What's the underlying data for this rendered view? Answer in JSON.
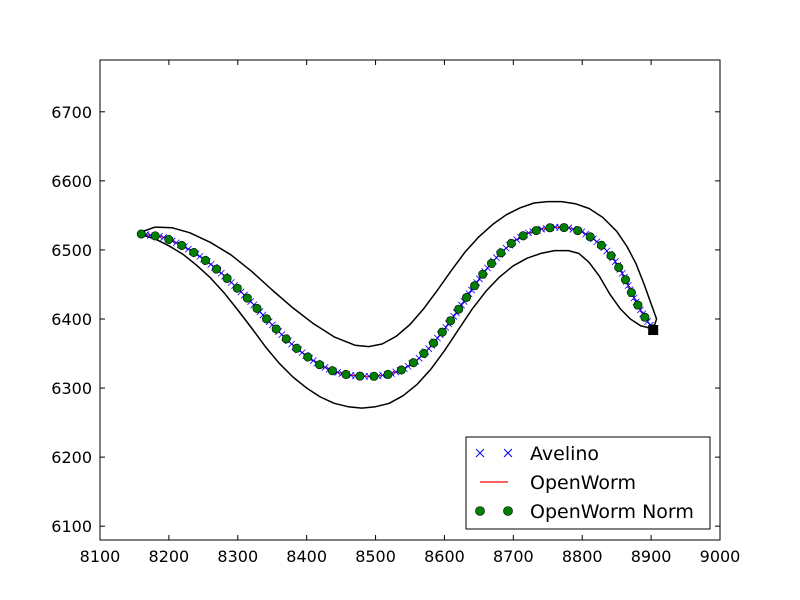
{
  "chart_data": {
    "type": "scatter",
    "xlim": [
      8100,
      9000
    ],
    "ylim": [
      6080,
      6775
    ],
    "x_ticks": [
      8100,
      8200,
      8300,
      8400,
      8500,
      8600,
      8700,
      8800,
      8900,
      9000
    ],
    "y_ticks": [
      6100,
      6200,
      6300,
      6400,
      6500,
      6600,
      6700
    ],
    "grid": false,
    "legend_position": "lower-right",
    "colors": {
      "avelino": "#0000ff",
      "openworm": "#ff0000",
      "openworm_norm": "#008000",
      "contour": "#000000"
    },
    "legend": [
      {
        "key": "avelino",
        "label": "Avelino",
        "marker": "x"
      },
      {
        "key": "openworm",
        "label": "OpenWorm",
        "marker": "line"
      },
      {
        "key": "openworm_norm",
        "label": "OpenWorm Norm",
        "marker": "circle"
      }
    ],
    "centerline": [
      [
        8160,
        6523
      ],
      [
        8175,
        6521
      ],
      [
        8190,
        6519
      ],
      [
        8205,
        6513
      ],
      [
        8222,
        6505
      ],
      [
        8240,
        6494
      ],
      [
        8260,
        6480
      ],
      [
        8280,
        6463
      ],
      [
        8300,
        6444
      ],
      [
        8320,
        6424
      ],
      [
        8340,
        6402
      ],
      [
        8360,
        6381
      ],
      [
        8380,
        6362
      ],
      [
        8400,
        6346
      ],
      [
        8420,
        6333
      ],
      [
        8440,
        6324
      ],
      [
        8460,
        6319
      ],
      [
        8480,
        6317
      ],
      [
        8500,
        6317
      ],
      [
        8520,
        6320
      ],
      [
        8540,
        6327
      ],
      [
        8560,
        6340
      ],
      [
        8580,
        6360
      ],
      [
        8600,
        6385
      ],
      [
        8620,
        6413
      ],
      [
        8640,
        6443
      ],
      [
        8660,
        6471
      ],
      [
        8680,
        6494
      ],
      [
        8700,
        6512
      ],
      [
        8720,
        6524
      ],
      [
        8740,
        6530
      ],
      [
        8760,
        6533
      ],
      [
        8780,
        6532
      ],
      [
        8800,
        6526
      ],
      [
        8815,
        6517
      ],
      [
        8830,
        6505
      ],
      [
        8845,
        6488
      ],
      [
        8860,
        6463
      ],
      [
        8872,
        6437
      ],
      [
        8885,
        6412
      ],
      [
        8895,
        6396
      ],
      [
        8903,
        6386
      ]
    ],
    "contour_upper": [
      [
        8160,
        6526
      ],
      [
        8180,
        6533
      ],
      [
        8205,
        6532
      ],
      [
        8230,
        6525
      ],
      [
        8260,
        6511
      ],
      [
        8290,
        6493
      ],
      [
        8320,
        6469
      ],
      [
        8350,
        6442
      ],
      [
        8380,
        6416
      ],
      [
        8410,
        6393
      ],
      [
        8440,
        6374
      ],
      [
        8470,
        6362
      ],
      [
        8490,
        6360
      ],
      [
        8510,
        6364
      ],
      [
        8530,
        6375
      ],
      [
        8550,
        6392
      ],
      [
        8570,
        6415
      ],
      [
        8590,
        6442
      ],
      [
        8610,
        6470
      ],
      [
        8630,
        6497
      ],
      [
        8650,
        6519
      ],
      [
        8670,
        6537
      ],
      [
        8690,
        6551
      ],
      [
        8710,
        6561
      ],
      [
        8730,
        6568
      ],
      [
        8750,
        6570
      ],
      [
        8770,
        6570
      ],
      [
        8790,
        6567
      ],
      [
        8810,
        6560
      ],
      [
        8830,
        6547
      ],
      [
        8850,
        6527
      ],
      [
        8865,
        6505
      ],
      [
        8878,
        6480
      ],
      [
        8890,
        6450
      ],
      [
        8900,
        6422
      ],
      [
        8908,
        6400
      ],
      [
        8903,
        6386
      ]
    ],
    "contour_lower": [
      [
        8903,
        6386
      ],
      [
        8885,
        6390
      ],
      [
        8870,
        6400
      ],
      [
        8855,
        6415
      ],
      [
        8840,
        6436
      ],
      [
        8825,
        6462
      ],
      [
        8810,
        6482
      ],
      [
        8795,
        6495
      ],
      [
        8780,
        6499
      ],
      [
        8760,
        6499
      ],
      [
        8740,
        6495
      ],
      [
        8720,
        6488
      ],
      [
        8700,
        6477
      ],
      [
        8680,
        6461
      ],
      [
        8660,
        6440
      ],
      [
        8640,
        6414
      ],
      [
        8620,
        6384
      ],
      [
        8600,
        6354
      ],
      [
        8580,
        6327
      ],
      [
        8560,
        6305
      ],
      [
        8540,
        6289
      ],
      [
        8520,
        6278
      ],
      [
        8500,
        6273
      ],
      [
        8480,
        6271
      ],
      [
        8460,
        6273
      ],
      [
        8440,
        6278
      ],
      [
        8420,
        6287
      ],
      [
        8400,
        6300
      ],
      [
        8380,
        6316
      ],
      [
        8360,
        6336
      ],
      [
        8340,
        6360
      ],
      [
        8320,
        6387
      ],
      [
        8300,
        6413
      ],
      [
        8280,
        6438
      ],
      [
        8260,
        6460
      ],
      [
        8240,
        6478
      ],
      [
        8220,
        6494
      ],
      [
        8200,
        6506
      ],
      [
        8180,
        6516
      ],
      [
        8160,
        6522
      ]
    ],
    "end_marker": {
      "x": 8903,
      "y": 6384,
      "marker": "square"
    },
    "norm_point_count": 49,
    "x_marker_count": 150
  }
}
